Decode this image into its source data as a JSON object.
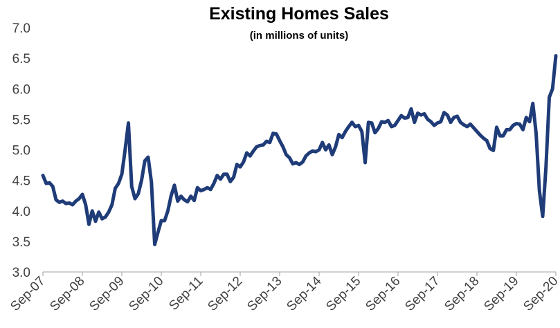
{
  "chart_data": {
    "type": "line",
    "title": "Existing Homes Sales",
    "subtitle": "(in millions of units)",
    "categories": [
      "Sep-07",
      null,
      null,
      null,
      null,
      null,
      null,
      null,
      null,
      null,
      null,
      null,
      "Sep-08",
      null,
      null,
      null,
      null,
      null,
      null,
      null,
      null,
      null,
      null,
      null,
      "Sep-09",
      null,
      null,
      null,
      null,
      null,
      null,
      null,
      null,
      null,
      null,
      null,
      "Sep-10",
      null,
      null,
      null,
      null,
      null,
      null,
      null,
      null,
      null,
      null,
      null,
      "Sep-11",
      null,
      null,
      null,
      null,
      null,
      null,
      null,
      null,
      null,
      null,
      null,
      "Sep-12",
      null,
      null,
      null,
      null,
      null,
      null,
      null,
      null,
      null,
      null,
      null,
      "Sep-13",
      null,
      null,
      null,
      null,
      null,
      null,
      null,
      null,
      null,
      null,
      null,
      "Sep-14",
      null,
      null,
      null,
      null,
      null,
      null,
      null,
      null,
      null,
      null,
      null,
      "Sep-15",
      null,
      null,
      null,
      null,
      null,
      null,
      null,
      null,
      null,
      null,
      null,
      "Sep-16",
      null,
      null,
      null,
      null,
      null,
      null,
      null,
      null,
      null,
      null,
      null,
      "Sep-17",
      null,
      null,
      null,
      null,
      null,
      null,
      null,
      null,
      null,
      null,
      null,
      "Sep-18",
      null,
      null,
      null,
      null,
      null,
      null,
      null,
      null,
      null,
      null,
      null,
      "Sep-19",
      null,
      null,
      null,
      null,
      null,
      null,
      null,
      null,
      null,
      null,
      null,
      "Sep-20"
    ],
    "series": [
      {
        "name": "Existing Homes Sales",
        "color": "#1f3c78",
        "values": [
          4.58,
          4.45,
          4.46,
          4.4,
          4.18,
          4.14,
          4.16,
          4.12,
          4.13,
          4.1,
          4.16,
          4.2,
          4.27,
          4.1,
          3.78,
          4.0,
          3.83,
          3.98,
          3.87,
          3.9,
          3.98,
          4.1,
          4.37,
          4.45,
          4.6,
          5.0,
          5.44,
          4.4,
          4.2,
          4.28,
          4.5,
          4.82,
          4.88,
          4.47,
          3.45,
          3.65,
          3.84,
          3.84,
          4.0,
          4.25,
          4.42,
          4.16,
          4.24,
          4.18,
          4.15,
          4.24,
          4.17,
          4.38,
          4.33,
          4.35,
          4.38,
          4.35,
          4.45,
          4.58,
          4.52,
          4.6,
          4.6,
          4.48,
          4.55,
          4.76,
          4.72,
          4.8,
          4.95,
          4.9,
          4.98,
          5.05,
          5.07,
          5.08,
          5.14,
          5.12,
          5.27,
          5.26,
          5.15,
          5.05,
          4.92,
          4.87,
          4.77,
          4.79,
          4.76,
          4.8,
          4.9,
          4.95,
          4.98,
          4.97,
          5.0,
          5.12,
          5.0,
          5.08,
          4.92,
          5.05,
          5.25,
          5.2,
          5.3,
          5.38,
          5.45,
          5.38,
          5.4,
          5.3,
          4.79,
          5.45,
          5.44,
          5.28,
          5.35,
          5.46,
          5.45,
          5.48,
          5.38,
          5.4,
          5.48,
          5.56,
          5.52,
          5.53,
          5.67,
          5.45,
          5.6,
          5.57,
          5.59,
          5.5,
          5.46,
          5.4,
          5.44,
          5.46,
          5.61,
          5.57,
          5.45,
          5.53,
          5.55,
          5.45,
          5.41,
          5.38,
          5.42,
          5.36,
          5.3,
          5.24,
          5.19,
          5.15,
          5.02,
          4.99,
          5.37,
          5.23,
          5.23,
          5.33,
          5.33,
          5.4,
          5.43,
          5.42,
          5.33,
          5.53,
          5.46,
          5.76,
          5.27,
          4.33,
          3.91,
          4.72,
          5.86,
          6.0,
          6.54
        ]
      }
    ],
    "ylim": [
      3,
      7
    ],
    "yticks": [
      {
        "value": 3,
        "label": "3.0"
      },
      3.5,
      {
        "value": 4,
        "label": "4.0"
      },
      4.5,
      {
        "value": 5,
        "label": "5.0"
      },
      5.5,
      {
        "value": 6,
        "label": "6.0"
      },
      6.5,
      {
        "value": 7,
        "label": "7.0"
      }
    ],
    "grid": false
  }
}
